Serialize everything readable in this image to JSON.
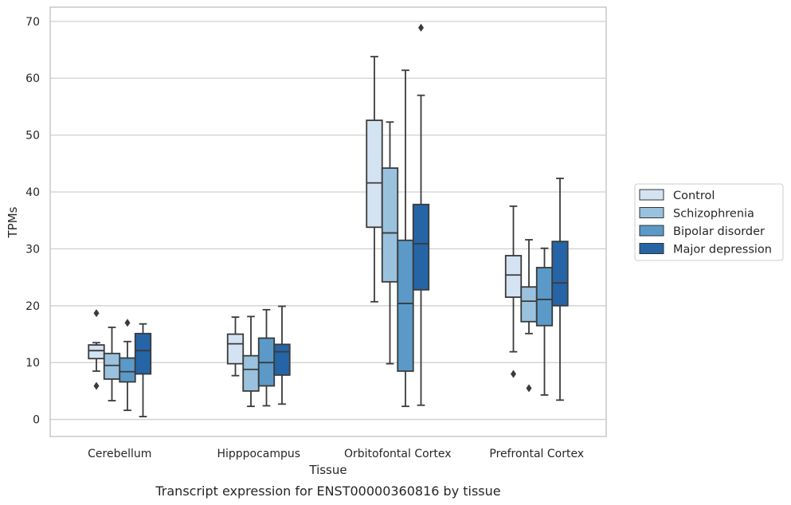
{
  "caption": "Transcript expression for ENST00000360816 by tissue",
  "chart_data": {
    "type": "box",
    "title": "",
    "xlabel": "Tissue",
    "ylabel": "TPMs",
    "ylim": [
      -3,
      72.5
    ],
    "yticks": [
      0,
      10,
      20,
      30,
      40,
      50,
      60,
      70
    ],
    "grid": "horizontal",
    "legend_position": "right",
    "categories": [
      "Cerebellum",
      "Hipppocampus",
      "Orbitofontal Cortex",
      "Prefrontal Cortex"
    ],
    "series": [
      {
        "name": "Control",
        "color": "#d4e3f2",
        "boxes": [
          {
            "whisker_low": 8.5,
            "q1": 10.7,
            "median": 12.1,
            "q3": 13.1,
            "whisker_high": 13.5,
            "outliers": [
              18.7,
              5.9
            ]
          },
          {
            "whisker_low": 7.7,
            "q1": 9.8,
            "median": 13.3,
            "q3": 15.0,
            "whisker_high": 18.0,
            "outliers": []
          },
          {
            "whisker_low": 20.7,
            "q1": 33.8,
            "median": 41.6,
            "q3": 52.6,
            "whisker_high": 63.8,
            "outliers": []
          },
          {
            "whisker_low": 11.9,
            "q1": 21.5,
            "median": 25.4,
            "q3": 28.8,
            "whisker_high": 37.5,
            "outliers": [
              8.0
            ]
          }
        ]
      },
      {
        "name": "Schizophrenia",
        "color": "#9ac2de",
        "boxes": [
          {
            "whisker_low": 3.3,
            "q1": 7.1,
            "median": 9.5,
            "q3": 11.6,
            "whisker_high": 16.2,
            "outliers": []
          },
          {
            "whisker_low": 2.3,
            "q1": 5.0,
            "median": 8.8,
            "q3": 11.2,
            "whisker_high": 18.1,
            "outliers": []
          },
          {
            "whisker_low": 9.8,
            "q1": 24.2,
            "median": 32.8,
            "q3": 44.2,
            "whisker_high": 52.3,
            "outliers": []
          },
          {
            "whisker_low": 15.1,
            "q1": 17.2,
            "median": 20.8,
            "q3": 23.3,
            "whisker_high": 31.6,
            "outliers": [
              5.5
            ]
          }
        ]
      },
      {
        "name": "Bipolar disorder",
        "color": "#5b9ac8",
        "boxes": [
          {
            "whisker_low": 1.6,
            "q1": 6.6,
            "median": 8.4,
            "q3": 10.8,
            "whisker_high": 13.7,
            "outliers": [
              17.0
            ]
          },
          {
            "whisker_low": 2.4,
            "q1": 5.9,
            "median": 10.0,
            "q3": 14.3,
            "whisker_high": 19.3,
            "outliers": []
          },
          {
            "whisker_low": 2.3,
            "q1": 8.5,
            "median": 20.4,
            "q3": 31.5,
            "whisker_high": 61.4,
            "outliers": []
          },
          {
            "whisker_low": 4.3,
            "q1": 16.5,
            "median": 21.1,
            "q3": 26.7,
            "whisker_high": 30.1,
            "outliers": []
          }
        ]
      },
      {
        "name": "Major depression",
        "color": "#2565a6",
        "boxes": [
          {
            "whisker_low": 0.5,
            "q1": 8.0,
            "median": 12.1,
            "q3": 15.1,
            "whisker_high": 16.8,
            "outliers": []
          },
          {
            "whisker_low": 2.7,
            "q1": 7.8,
            "median": 11.9,
            "q3": 13.2,
            "whisker_high": 19.9,
            "outliers": []
          },
          {
            "whisker_low": 2.5,
            "q1": 22.8,
            "median": 30.9,
            "q3": 37.8,
            "whisker_high": 57.0,
            "outliers": [
              68.9
            ]
          },
          {
            "whisker_low": 3.4,
            "q1": 20.0,
            "median": 24.0,
            "q3": 31.3,
            "whisker_high": 42.4,
            "outliers": []
          }
        ]
      }
    ]
  }
}
